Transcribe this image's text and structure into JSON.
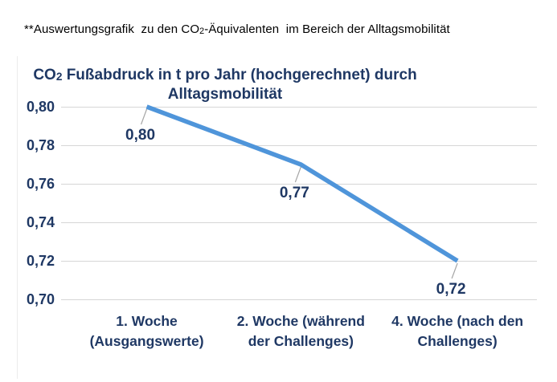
{
  "caption": {
    "pre": "**Auswertungsgrafik  zu den CO",
    "sub": "2",
    "post": "-Äquivalenten  im Bereich der Alltagsmobilität"
  },
  "chart": {
    "title": {
      "pre": "CO",
      "sub": "2",
      "line1_rest": " Fußabdruck in t pro Jahr (hochgerechnet) durch",
      "line2": "Alltagsmobilität"
    }
  },
  "chart_data": {
    "type": "line",
    "title": "CO2 Fußabdruck in t pro Jahr (hochgerechnet) durch Alltagsmobilität",
    "categories": [
      "1. Woche (Ausgangswerte)",
      "2. Woche (während der Challenges)",
      "4. Woche (nach den Challenges)"
    ],
    "values": [
      0.8,
      0.77,
      0.72
    ],
    "data_labels": [
      "0,80",
      "0,77",
      "0,72"
    ],
    "yticks": [
      0.8,
      0.78,
      0.76,
      0.74,
      0.72,
      0.7
    ],
    "ytick_labels": [
      "0,80",
      "0,78",
      "0,76",
      "0,74",
      "0,72",
      "0,70"
    ],
    "ylim": [
      0.7,
      0.8
    ],
    "xlabel": "",
    "ylabel": "",
    "grid": true,
    "legend": false,
    "line_color": "#4f95da",
    "text_color": "#1f3864",
    "grid_color": "#d6d6d6",
    "leader_color": "#a6a6a6"
  }
}
